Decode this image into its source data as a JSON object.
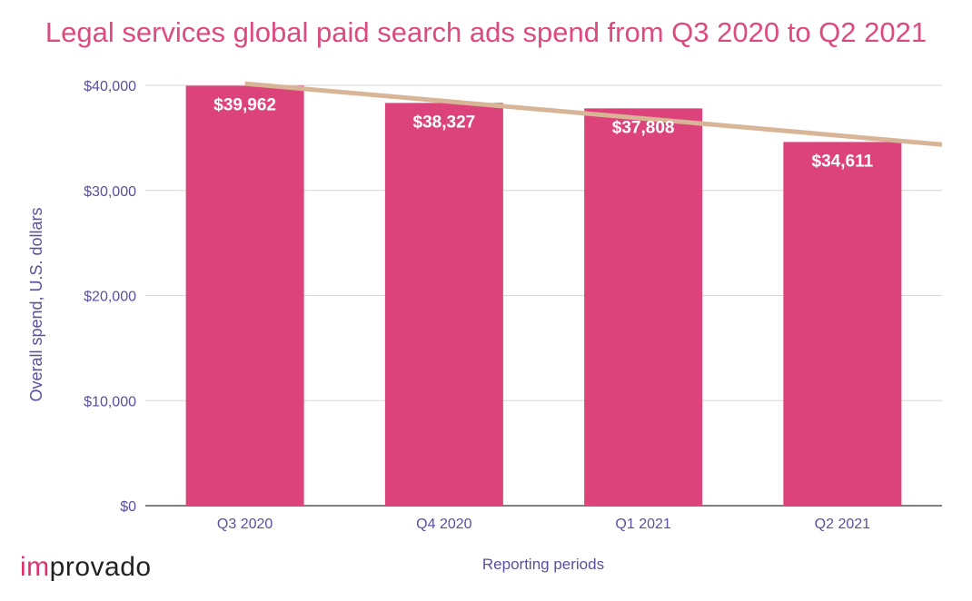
{
  "colors": {
    "title": "#dc4a7f",
    "bar": "#dc437b",
    "trend": "#d8b596",
    "axis_text": "#5b4f9e",
    "grid": "#d5d5d5",
    "baseline": "#333333",
    "data_label": "#ffffff",
    "logo_accent": "#e0306e",
    "logo_text": "#222222"
  },
  "logo": {
    "accent": "im",
    "rest": "provado"
  },
  "chart_data": {
    "type": "bar",
    "title": "Legal services global paid search ads spend from Q3 2020 to Q2 2021",
    "xlabel": "Reporting periods",
    "ylabel": "Overall spend, U.S. dollars",
    "categories": [
      "Q3 2020",
      "Q4 2020",
      "Q1 2021",
      "Q2 2021"
    ],
    "values": [
      39962,
      38327,
      37808,
      34611
    ],
    "data_labels": [
      "$39,962",
      "$38,327",
      "$37,808",
      "$34,611"
    ],
    "ylim": [
      0,
      40000
    ],
    "yticks": [
      0,
      10000,
      20000,
      30000,
      40000
    ],
    "ytick_labels": [
      "$0",
      "$10,000",
      "$20,000",
      "$30,000",
      "$40,000"
    ],
    "trendline": {
      "type": "linear",
      "label": ""
    },
    "grid": true,
    "legend": "none"
  }
}
